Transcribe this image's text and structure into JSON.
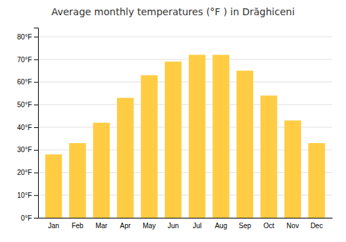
{
  "chart_data": {
    "type": "bar",
    "title": "Average monthly temperatures (°F ) in Drăghiceni",
    "categories": [
      "Jan",
      "Feb",
      "Mar",
      "Apr",
      "May",
      "Jun",
      "Jul",
      "Aug",
      "Sep",
      "Oct",
      "Nov",
      "Dec"
    ],
    "values": [
      28,
      33,
      42,
      53,
      63,
      69,
      72,
      72,
      65,
      54,
      43,
      33
    ],
    "color": "#FFCC44",
    "ylim": [
      0,
      84
    ],
    "yticks": [
      {
        "value": 0,
        "label": "0°F"
      },
      {
        "value": 10,
        "label": "10°F"
      },
      {
        "value": 20,
        "label": "20°F"
      },
      {
        "value": 30,
        "label": "30°F"
      },
      {
        "value": 40,
        "label": "40°F"
      },
      {
        "value": 50,
        "label": "50°F"
      },
      {
        "value": 60,
        "label": "60°F"
      },
      {
        "value": 70,
        "label": "70°F"
      },
      {
        "value": 80,
        "label": "80°F"
      }
    ],
    "grid": true
  }
}
